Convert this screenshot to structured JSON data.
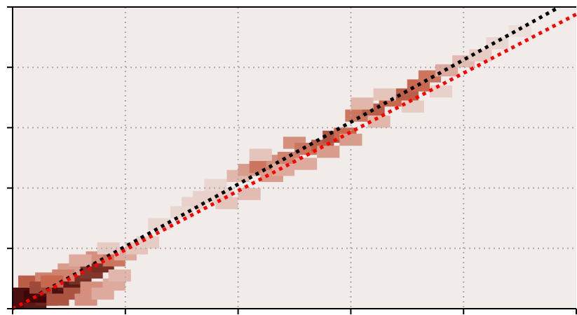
{
  "chart_data": {
    "type": "heatmap",
    "title": "",
    "xlabel": "",
    "ylabel": "",
    "xlim": [
      0,
      5
    ],
    "ylim": [
      0,
      5
    ],
    "xticks": [
      0,
      1,
      2,
      3,
      4,
      5
    ],
    "yticks": [
      0,
      1,
      2,
      3,
      4,
      5
    ],
    "grid": true,
    "colors": {
      "background": "#f1ebea",
      "heat_low": "#f1ebea",
      "heat_mid": "#c8684f",
      "heat_high": "#3d0508",
      "grid": "#aaaaaa",
      "reference_line": "#000000",
      "fit_line": "#ff0000"
    },
    "series": [
      {
        "type": "line",
        "style": "dotted",
        "color": "#000000",
        "points": [
          [
            0,
            0
          ],
          [
            4.85,
            5.0
          ]
        ]
      },
      {
        "type": "line",
        "style": "dotted",
        "color": "#ff0000",
        "points": [
          [
            0,
            0
          ],
          [
            5.0,
            4.88
          ]
        ]
      }
    ],
    "heat_cells": [
      [
        0.1,
        0.1,
        0.95
      ],
      [
        0.2,
        0.1,
        0.9
      ],
      [
        0.3,
        0.15,
        0.85
      ],
      [
        0.1,
        0.25,
        0.95
      ],
      [
        0.2,
        0.2,
        1.0
      ],
      [
        0.3,
        0.3,
        0.95
      ],
      [
        0.4,
        0.3,
        0.95
      ],
      [
        0.5,
        0.4,
        0.9
      ],
      [
        0.6,
        0.5,
        0.8
      ],
      [
        0.7,
        0.6,
        0.75
      ],
      [
        0.8,
        0.7,
        0.8
      ],
      [
        0.75,
        0.85,
        0.35
      ],
      [
        0.9,
        0.8,
        0.45
      ],
      [
        1.0,
        0.9,
        0.25
      ],
      [
        0.4,
        0.15,
        0.6
      ],
      [
        0.55,
        0.25,
        0.6
      ],
      [
        0.7,
        0.35,
        0.35
      ],
      [
        0.15,
        0.45,
        0.55
      ],
      [
        0.3,
        0.5,
        0.4
      ],
      [
        0.5,
        0.65,
        0.3
      ],
      [
        0.9,
        0.4,
        0.25
      ],
      [
        0.95,
        0.55,
        0.2
      ],
      [
        0.85,
        1.0,
        0.12
      ],
      [
        1.3,
        1.4,
        0.08
      ],
      [
        1.6,
        1.75,
        0.1
      ],
      [
        1.85,
        1.9,
        0.12
      ],
      [
        2.0,
        2.2,
        0.2
      ],
      [
        2.1,
        2.3,
        0.3
      ],
      [
        2.2,
        2.35,
        0.45
      ],
      [
        2.35,
        2.45,
        0.35
      ],
      [
        2.45,
        2.5,
        0.4
      ],
      [
        2.5,
        2.75,
        0.35
      ],
      [
        2.6,
        2.65,
        0.45
      ],
      [
        2.75,
        2.7,
        0.55
      ],
      [
        2.85,
        2.85,
        0.6
      ],
      [
        2.95,
        2.9,
        0.5
      ],
      [
        3.05,
        3.2,
        0.45
      ],
      [
        3.2,
        3.3,
        0.55
      ],
      [
        3.35,
        3.45,
        0.5
      ],
      [
        3.5,
        3.55,
        0.55
      ],
      [
        3.6,
        3.7,
        0.5
      ],
      [
        3.7,
        3.85,
        0.45
      ],
      [
        3.85,
        3.95,
        0.25
      ],
      [
        4.0,
        4.1,
        0.18
      ],
      [
        4.15,
        4.2,
        0.12
      ],
      [
        4.3,
        4.4,
        0.08
      ],
      [
        4.5,
        4.6,
        0.05
      ],
      [
        2.3,
        2.2,
        0.3
      ],
      [
        2.4,
        2.3,
        0.25
      ],
      [
        2.6,
        2.4,
        0.25
      ],
      [
        2.8,
        2.6,
        0.3
      ],
      [
        3.0,
        2.8,
        0.3
      ],
      [
        3.25,
        3.1,
        0.2
      ],
      [
        2.1,
        1.9,
        0.18
      ],
      [
        1.9,
        1.75,
        0.15
      ],
      [
        1.5,
        1.6,
        0.08
      ],
      [
        1.7,
        1.85,
        0.1
      ],
      [
        2.2,
        2.55,
        0.15
      ],
      [
        1.8,
        2.05,
        0.08
      ],
      [
        3.1,
        3.4,
        0.2
      ],
      [
        3.3,
        3.55,
        0.15
      ],
      [
        3.55,
        3.35,
        0.12
      ],
      [
        3.8,
        3.6,
        0.1
      ],
      [
        1.1,
        1.0,
        0.15
      ],
      [
        1.2,
        1.1,
        0.12
      ],
      [
        0.6,
        0.8,
        0.25
      ],
      [
        0.45,
        0.55,
        0.4
      ],
      [
        0.25,
        0.35,
        0.65
      ],
      [
        0.35,
        0.45,
        0.5
      ],
      [
        0.65,
        0.15,
        0.35
      ],
      [
        0.8,
        0.25,
        0.25
      ]
    ]
  }
}
